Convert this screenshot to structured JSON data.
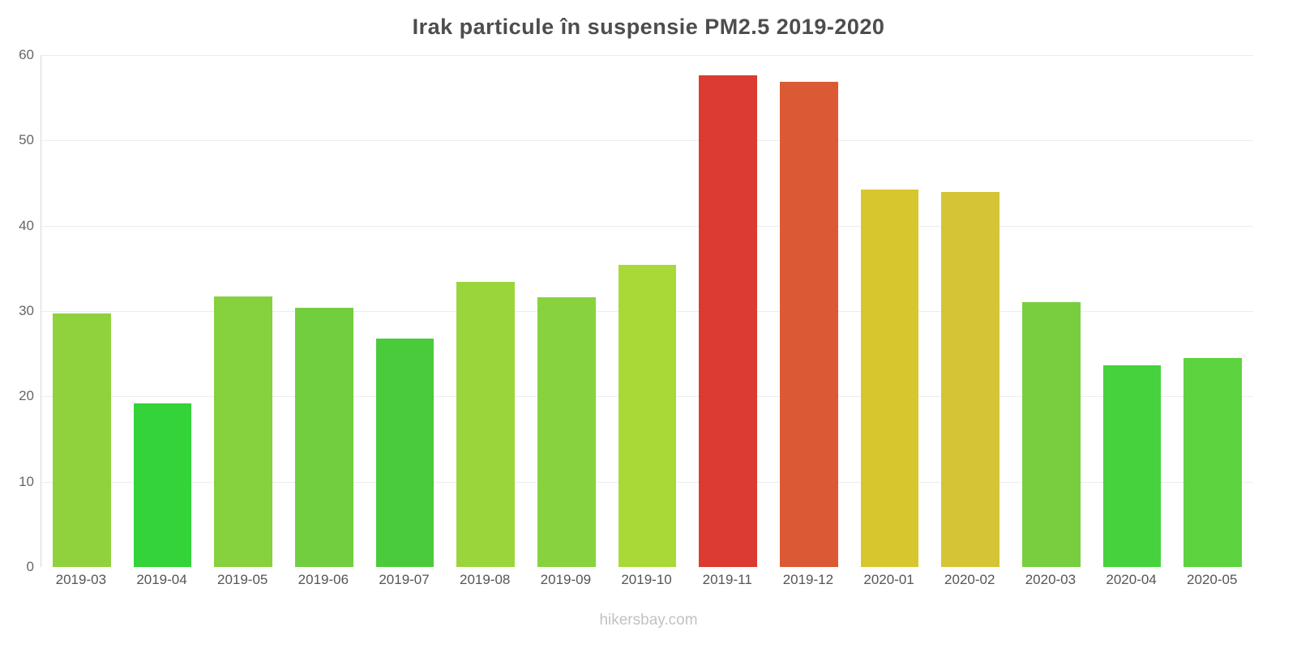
{
  "title": "Irak particule în suspensie PM2.5 2019-2020",
  "footer": "hikersbay.com",
  "chart_data": {
    "type": "bar",
    "title": "Irak particule în suspensie PM2.5 2019-2020",
    "xlabel": "",
    "ylabel": "",
    "ylim": [
      0,
      60
    ],
    "yticks": [
      0,
      10,
      20,
      30,
      40,
      50,
      60
    ],
    "grid": true,
    "legend": "none",
    "categories": [
      "2019-03",
      "2019-04",
      "2019-05",
      "2019-06",
      "2019-07",
      "2019-08",
      "2019-09",
      "2019-10",
      "2019-11",
      "2019-12",
      "2020-01",
      "2020-02",
      "2020-03",
      "2020-04",
      "2020-05"
    ],
    "values": [
      29.7,
      19.2,
      31.7,
      30.4,
      26.8,
      33.4,
      31.6,
      35.4,
      57.6,
      56.9,
      44.2,
      44.0,
      31.0,
      23.6,
      24.5
    ],
    "bar_colors": [
      "#8FD23E",
      "#33D339",
      "#85D13E",
      "#72CE3E",
      "#4ACB3C",
      "#9AD63B",
      "#87D23E",
      "#A9D936",
      "#DB3B30",
      "#DB5A33",
      "#D8C62E",
      "#D5C435",
      "#77CF40",
      "#45D23D",
      "#5DD33F"
    ],
    "gridline_color": "#ededed",
    "axis_color": "#d9d9d9",
    "title_color": "#4d4d4d",
    "tick_label_color": "#666666",
    "x_label_color": "#555555",
    "footer_color": "#c2c2c2"
  }
}
